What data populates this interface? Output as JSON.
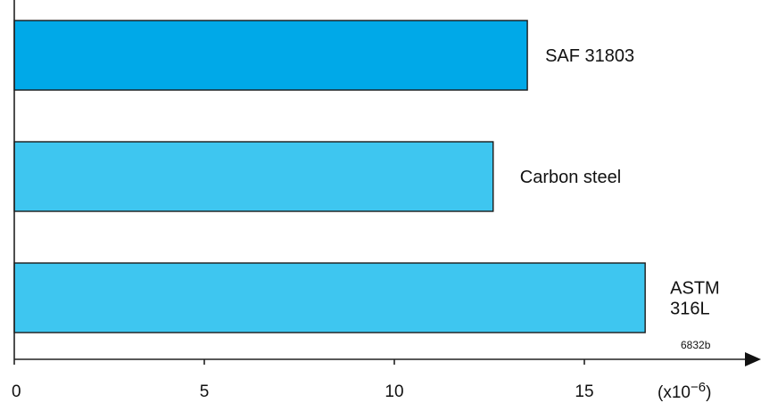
{
  "chart_data": {
    "type": "bar",
    "orientation": "horizontal",
    "categories": [
      "SAF 31803",
      "Carbon steel",
      "ASTM 316L"
    ],
    "values": [
      13.5,
      12.6,
      16.6
    ],
    "category_lines": [
      [
        "SAF 31803"
      ],
      [
        "Carbon steel"
      ],
      [
        "ASTM 316L"
      ]
    ],
    "label_lines": {
      "ASTM 316L": [
        "ASTM",
        "316L"
      ]
    },
    "colors": [
      "#00a9e8",
      "#3ec6f0",
      "#3ec6f0"
    ],
    "xticks": [
      "0",
      "5",
      "10",
      "15"
    ],
    "xtick_values": [
      0,
      5,
      10,
      15
    ],
    "xlim": [
      0,
      19
    ],
    "x_unit": "(x10−6)",
    "x_unit_base": "(x10",
    "x_unit_exp": "−6",
    "x_unit_close": ")",
    "annotation": "6832b",
    "grid": false,
    "legend": "none"
  }
}
